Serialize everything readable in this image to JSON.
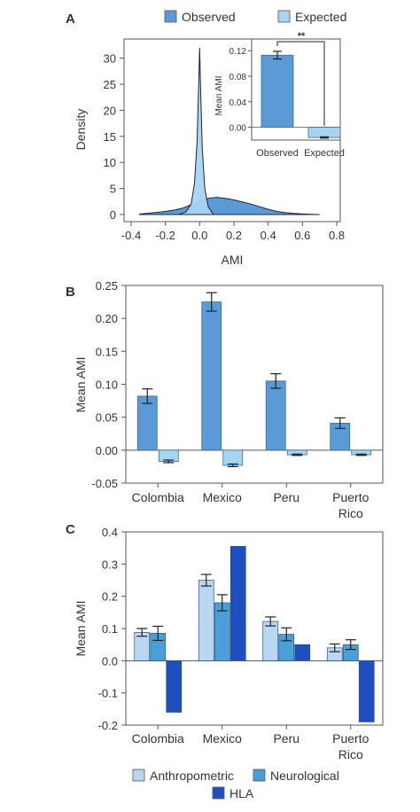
{
  "colors": {
    "observed": "#5b9bd5",
    "expected": "#a8d4f2",
    "anthropometric": "#b9d6f2",
    "neurological": "#4a9fd8",
    "hla": "#1f4fbf",
    "axis": "#555555"
  },
  "chart_data": [
    {
      "panel": "A",
      "type": "area",
      "xlabel": "AMI",
      "ylabel": "Density",
      "xlim": [
        -0.4,
        0.8
      ],
      "ylim": [
        0,
        33
      ],
      "xticks": [
        "-0.4",
        "-0.2",
        "0.0",
        "0.2",
        "0.4",
        "0.6",
        "0.8"
      ],
      "yticks": [
        "0",
        "5",
        "10",
        "15",
        "20",
        "25",
        "30"
      ],
      "legend": {
        "placement": "top",
        "entries": [
          "Observed",
          "Expected"
        ]
      },
      "series": [
        {
          "name": "Observed",
          "x": [
            -0.35,
            -0.3,
            -0.25,
            -0.2,
            -0.15,
            -0.1,
            -0.05,
            0.0,
            0.05,
            0.1,
            0.15,
            0.2,
            0.25,
            0.3,
            0.35,
            0.4,
            0.45,
            0.5,
            0.55,
            0.6,
            0.65,
            0.7
          ],
          "y": [
            0.1,
            0.25,
            0.4,
            0.6,
            0.85,
            1.2,
            1.9,
            2.6,
            3.1,
            3.3,
            3.1,
            2.8,
            2.4,
            2.0,
            1.5,
            1.0,
            0.6,
            0.35,
            0.2,
            0.1,
            0.05,
            0.0
          ]
        },
        {
          "name": "Expected",
          "x": [
            -0.12,
            -0.08,
            -0.05,
            -0.03,
            -0.015,
            -0.005,
            0.0,
            0.005,
            0.015,
            0.03,
            0.05,
            0.08
          ],
          "y": [
            0.0,
            0.5,
            2.0,
            6.0,
            14.0,
            26.0,
            32.0,
            25.0,
            13.0,
            5.0,
            1.5,
            0.0
          ]
        }
      ],
      "inset": {
        "type": "bar",
        "ylabel": "Mean AMI",
        "ylim": [
          -0.02,
          0.13
        ],
        "yticks": [
          "0.00",
          "0.04",
          "0.08",
          "0.12"
        ],
        "categories": [
          "Observed",
          "Expected"
        ],
        "values": [
          0.113,
          -0.016
        ],
        "errors": [
          0.006,
          0.001
        ],
        "significance": "**"
      }
    },
    {
      "panel": "B",
      "type": "bar",
      "ylabel": "Mean AMI",
      "ylim": [
        -0.05,
        0.25
      ],
      "yticks": [
        "-0.05",
        "0.00",
        "0.05",
        "0.10",
        "0.15",
        "0.20",
        "0.25"
      ],
      "categories": [
        "Colombia",
        "Mexico",
        "Peru",
        "Puerto Rico"
      ],
      "category_lines": [
        [
          "Colombia"
        ],
        [
          "Mexico"
        ],
        [
          "Peru"
        ],
        [
          "Puerto",
          "Rico"
        ]
      ],
      "series": [
        {
          "name": "Observed",
          "values": [
            0.082,
            0.225,
            0.105,
            0.041
          ],
          "errors": [
            0.011,
            0.014,
            0.011,
            0.008
          ]
        },
        {
          "name": "Expected",
          "values": [
            -0.017,
            -0.023,
            -0.007,
            -0.007
          ],
          "errors": [
            0.002,
            0.002,
            0.001,
            0.001
          ]
        }
      ]
    },
    {
      "panel": "C",
      "type": "bar",
      "ylabel": "Mean AMI",
      "ylim": [
        -0.2,
        0.4
      ],
      "yticks": [
        "-0.2",
        "-0.1",
        "0.0",
        "0.1",
        "0.2",
        "0.3",
        "0.4"
      ],
      "categories": [
        "Colombia",
        "Mexico",
        "Peru",
        "Puerto Rico"
      ],
      "category_lines": [
        [
          "Colombia"
        ],
        [
          "Mexico"
        ],
        [
          "Peru"
        ],
        [
          "Puerto",
          "Rico"
        ]
      ],
      "legend": {
        "placement": "bottom",
        "entries": [
          "Anthropometric",
          "Neurological",
          "HLA"
        ]
      },
      "series": [
        {
          "name": "Anthropometric",
          "values": [
            0.088,
            0.25,
            0.122,
            0.04
          ],
          "errors": [
            0.012,
            0.018,
            0.014,
            0.012
          ]
        },
        {
          "name": "Neurological",
          "values": [
            0.085,
            0.18,
            0.082,
            0.05
          ],
          "errors": [
            0.022,
            0.025,
            0.02,
            0.015
          ]
        },
        {
          "name": "HLA",
          "values": [
            -0.16,
            0.355,
            0.05,
            -0.19
          ],
          "errors": [
            0,
            0,
            0,
            0
          ]
        }
      ]
    }
  ]
}
